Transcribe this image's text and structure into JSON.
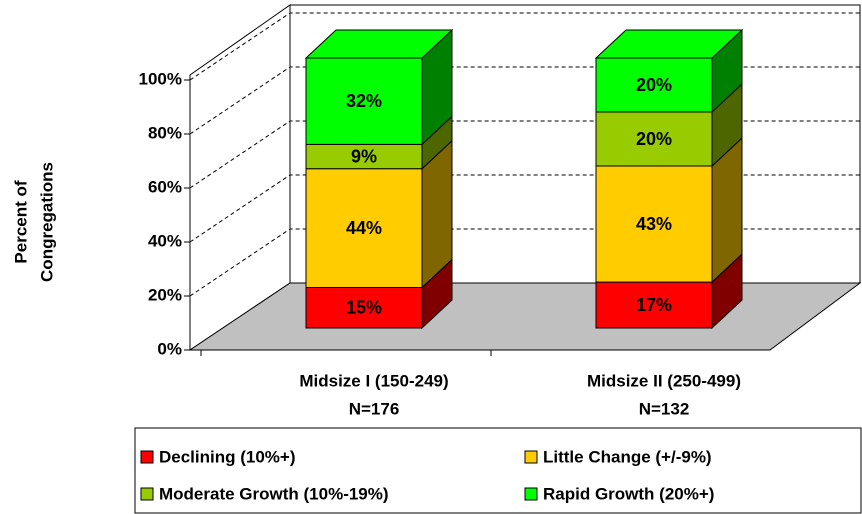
{
  "chart_data": {
    "type": "bar3d_stacked",
    "y_label": [
      "Percent of",
      "Congregations"
    ],
    "categories": [
      "Midsize I (150-249)",
      "Midsize II (250-499)"
    ],
    "category_counts": [
      "N=176",
      "N=132"
    ],
    "series": [
      {
        "name": "Declining (10%+)",
        "color": "#ff0000",
        "side_color": "#800000",
        "values": [
          15,
          17
        ],
        "value_labels": [
          "15%",
          "17%"
        ]
      },
      {
        "name": "Little Change (+/-9%)",
        "color": "#ffcc00",
        "side_color": "#806600",
        "values": [
          44,
          43
        ],
        "value_labels": [
          "44%",
          "43%"
        ]
      },
      {
        "name": "Moderate Growth (10%-19%)",
        "color": "#99cc00",
        "side_color": "#4d6600",
        "values": [
          9,
          20
        ],
        "value_labels": [
          "9%",
          "20%"
        ]
      },
      {
        "name": "Rapid Growth (20%+)",
        "color": "#00ff00",
        "side_color": "#008000",
        "values": [
          32,
          20
        ],
        "value_labels": [
          "32%",
          "20%"
        ]
      }
    ],
    "ylim": [
      0,
      100
    ],
    "yticks": [
      {
        "value": 0,
        "label": "0%"
      },
      {
        "value": 20,
        "label": "20%"
      },
      {
        "value": 40,
        "label": "40%"
      },
      {
        "value": 60,
        "label": "60%"
      },
      {
        "value": 80,
        "label": "80%"
      },
      {
        "value": 100,
        "label": "100%"
      }
    ],
    "grid": true,
    "legend": "bottom"
  }
}
